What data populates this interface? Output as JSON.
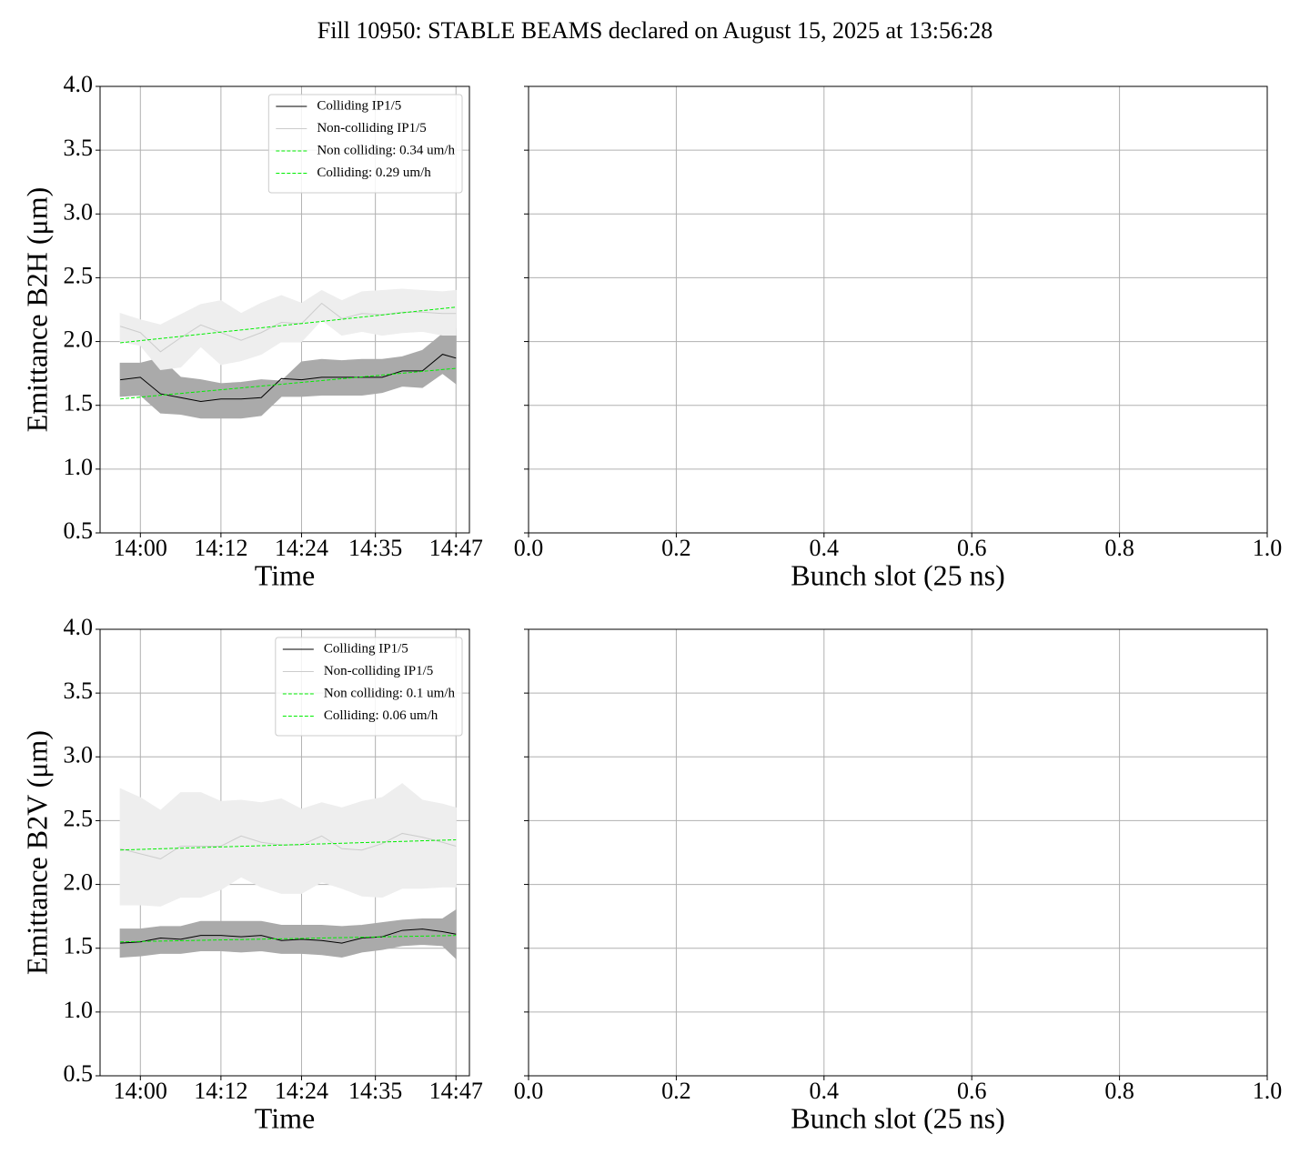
{
  "title": "Fill 10950: STABLE BEAMS declared on August 15, 2025 at 13:56:28",
  "chart_data": [
    {
      "type": "line",
      "xlabel": "Time",
      "ylabel": "Emittance B2H (μm)",
      "grid": true,
      "legend": "upper right",
      "xlim": [
        "13:54",
        "14:49"
      ],
      "xticks": [
        "14:00",
        "14:12",
        "14:24",
        "14:35",
        "14:47"
      ],
      "ylim": [
        0.5,
        4.0
      ],
      "yticks": [
        0.5,
        {
          "value": 1,
          "label": "1.0"
        },
        1.5,
        {
          "value": 2,
          "label": "2.0"
        },
        2.5,
        {
          "value": 3,
          "label": "3.0"
        },
        3.5,
        {
          "value": 4,
          "label": "4.0"
        }
      ],
      "x": [
        "13:57",
        "14:00",
        "14:03",
        "14:06",
        "14:09",
        "14:12",
        "14:15",
        "14:18",
        "14:21",
        "14:24",
        "14:27",
        "14:30",
        "14:33",
        "14:36",
        "14:39",
        "14:42",
        "14:45",
        "14:47"
      ],
      "series": [
        {
          "name": "Colliding IP1/5",
          "color": "#000000",
          "values": [
            1.7,
            1.72,
            1.59,
            1.56,
            1.53,
            1.55,
            1.55,
            1.56,
            1.71,
            1.7,
            1.72,
            1.72,
            1.72,
            1.72,
            1.77,
            1.77,
            1.9,
            1.87
          ],
          "band": {
            "color": "#aaaaaa",
            "lower": [
              1.57,
              1.58,
              1.44,
              1.43,
              1.4,
              1.4,
              1.4,
              1.42,
              1.57,
              1.57,
              1.58,
              1.58,
              1.58,
              1.6,
              1.65,
              1.64,
              1.75,
              1.67
            ],
            "upper": [
              1.83,
              1.83,
              1.87,
              1.72,
              1.7,
              1.67,
              1.68,
              1.7,
              1.69,
              1.84,
              1.86,
              1.85,
              1.86,
              1.86,
              1.88,
              1.93,
              2.06,
              2.1
            ]
          }
        },
        {
          "name": "Non-colliding IP1/5",
          "color": "#cccccc",
          "values": [
            2.12,
            2.07,
            1.92,
            2.03,
            2.13,
            2.07,
            2.01,
            2.07,
            2.15,
            2.14,
            2.3,
            2.18,
            2.22,
            2.21,
            2.23,
            2.23,
            2.22,
            2.22
          ],
          "band": {
            "color": "#eeeeee",
            "lower": [
              2.0,
              1.97,
              1.78,
              1.8,
              1.96,
              1.82,
              1.85,
              1.9,
              2.0,
              2.0,
              2.17,
              2.05,
              2.08,
              2.05,
              2.07,
              2.08,
              2.05,
              2.05
            ],
            "upper": [
              2.22,
              2.17,
              2.13,
              2.21,
              2.29,
              2.32,
              2.22,
              2.3,
              2.36,
              2.3,
              2.4,
              2.32,
              2.39,
              2.4,
              2.41,
              2.4,
              2.39,
              2.4
            ]
          }
        },
        {
          "name": "Non colliding: 0.34 um/h",
          "color": "#00ee00",
          "dashed": true,
          "x": [
            "13:57",
            "14:47"
          ],
          "values": [
            1.99,
            2.27
          ]
        },
        {
          "name": "Colliding: 0.29 um/h",
          "color": "#00ee00",
          "dashed": true,
          "x": [
            "13:57",
            "14:47"
          ],
          "values": [
            1.55,
            1.79
          ]
        }
      ]
    },
    {
      "type": "line",
      "xlabel": "Bunch slot (25 ns)",
      "grid": true,
      "xlim": [
        0,
        1
      ],
      "xticks": [
        {
          "value": 0,
          "label": "0.0"
        },
        0.2,
        0.4,
        0.6,
        0.8,
        {
          "value": 1,
          "label": "1.0"
        }
      ],
      "ylim": [
        0.5,
        4.0
      ],
      "yticks": [
        0.5,
        1,
        1.5,
        2,
        2.5,
        3,
        3.5,
        4
      ]
    },
    {
      "type": "line",
      "xlabel": "Time",
      "ylabel": "Emittance B2V (μm)",
      "grid": true,
      "legend": "upper right",
      "xlim": [
        "13:54",
        "14:49"
      ],
      "xticks": [
        "14:00",
        "14:12",
        "14:24",
        "14:35",
        "14:47"
      ],
      "ylim": [
        0.5,
        4.0
      ],
      "yticks": [
        0.5,
        {
          "value": 1,
          "label": "1.0"
        },
        1.5,
        {
          "value": 2,
          "label": "2.0"
        },
        2.5,
        {
          "value": 3,
          "label": "3.0"
        },
        3.5,
        {
          "value": 4,
          "label": "4.0"
        }
      ],
      "x": [
        "13:57",
        "14:00",
        "14:03",
        "14:06",
        "14:09",
        "14:12",
        "14:15",
        "14:18",
        "14:21",
        "14:24",
        "14:27",
        "14:30",
        "14:33",
        "14:36",
        "14:39",
        "14:42",
        "14:45",
        "14:47"
      ],
      "series": [
        {
          "name": "Colliding IP1/5",
          "color": "#000000",
          "values": [
            1.54,
            1.55,
            1.58,
            1.57,
            1.6,
            1.6,
            1.59,
            1.6,
            1.56,
            1.57,
            1.56,
            1.54,
            1.58,
            1.59,
            1.64,
            1.65,
            1.63,
            1.61
          ],
          "band": {
            "color": "#aaaaaa",
            "lower": [
              1.43,
              1.44,
              1.46,
              1.46,
              1.48,
              1.48,
              1.47,
              1.48,
              1.46,
              1.46,
              1.45,
              1.43,
              1.47,
              1.49,
              1.52,
              1.53,
              1.52,
              1.42
            ],
            "upper": [
              1.65,
              1.65,
              1.67,
              1.67,
              1.71,
              1.71,
              1.71,
              1.71,
              1.68,
              1.68,
              1.68,
              1.67,
              1.68,
              1.7,
              1.72,
              1.73,
              1.73,
              1.8
            ]
          }
        },
        {
          "name": "Non-colliding IP1/5",
          "color": "#cccccc",
          "values": [
            2.28,
            2.24,
            2.2,
            2.3,
            2.3,
            2.3,
            2.38,
            2.33,
            2.31,
            2.31,
            2.38,
            2.28,
            2.27,
            2.32,
            2.4,
            2.37,
            2.33,
            2.3
          ],
          "band": {
            "color": "#eeeeee",
            "lower": [
              1.84,
              1.84,
              1.83,
              1.9,
              1.9,
              1.96,
              2.06,
              1.98,
              1.93,
              1.93,
              2.02,
              1.97,
              1.91,
              1.9,
              1.97,
              1.97,
              1.98,
              1.98
            ],
            "upper": [
              2.75,
              2.68,
              2.58,
              2.72,
              2.72,
              2.65,
              2.66,
              2.64,
              2.67,
              2.59,
              2.64,
              2.6,
              2.65,
              2.68,
              2.79,
              2.66,
              2.63,
              2.6
            ]
          }
        },
        {
          "name": "Non colliding: 0.1 um/h",
          "color": "#00ee00",
          "dashed": true,
          "x": [
            "13:57",
            "14:47"
          ],
          "values": [
            2.27,
            2.35
          ]
        },
        {
          "name": "Colliding: 0.06 um/h",
          "color": "#00ee00",
          "dashed": true,
          "x": [
            "13:57",
            "14:47"
          ],
          "values": [
            1.55,
            1.6
          ]
        }
      ]
    },
    {
      "type": "line",
      "xlabel": "Bunch slot (25 ns)",
      "grid": true,
      "xlim": [
        0,
        1
      ],
      "xticks": [
        {
          "value": 0,
          "label": "0.0"
        },
        0.2,
        0.4,
        0.6,
        0.8,
        {
          "value": 1,
          "label": "1.0"
        }
      ],
      "ylim": [
        0.5,
        4.0
      ],
      "yticks": [
        0.5,
        1,
        1.5,
        2,
        2.5,
        3,
        3.5,
        4
      ]
    }
  ]
}
